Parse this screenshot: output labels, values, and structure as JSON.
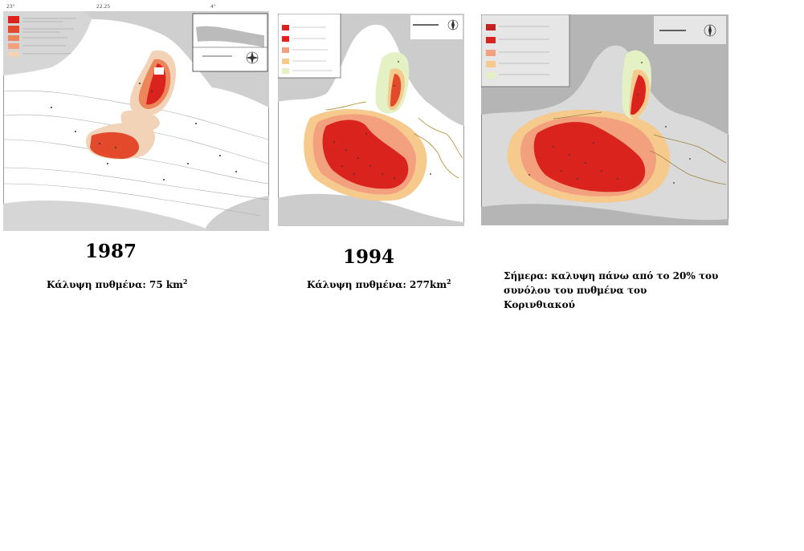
{
  "panels": [
    {
      "year": "1987",
      "caption": "Κάλυψη πυθμένα: 75 km",
      "caption_sup": "2",
      "axis_ticks": [
        "23°",
        "22.25",
        "4°"
      ]
    },
    {
      "year": "1994",
      "caption": "Κάλυψη πυθμένα: 277km",
      "caption_sup": "2"
    },
    {
      "year": "",
      "caption_line1": "Σήμερα: καλυψη πάνω από το 20% του",
      "caption_line2": "συνόλου του πυθμένα του Κορινθιακού"
    }
  ],
  "colors": {
    "dark_red": "#d9231c",
    "red": "#e34a2b",
    "salmon": "#f2a07e",
    "orange_light": "#f6c98c",
    "peach": "#f3d3b8",
    "light_green": "#e3f1c4",
    "land": "#c8c8c8",
    "sea": "#ffffff"
  }
}
